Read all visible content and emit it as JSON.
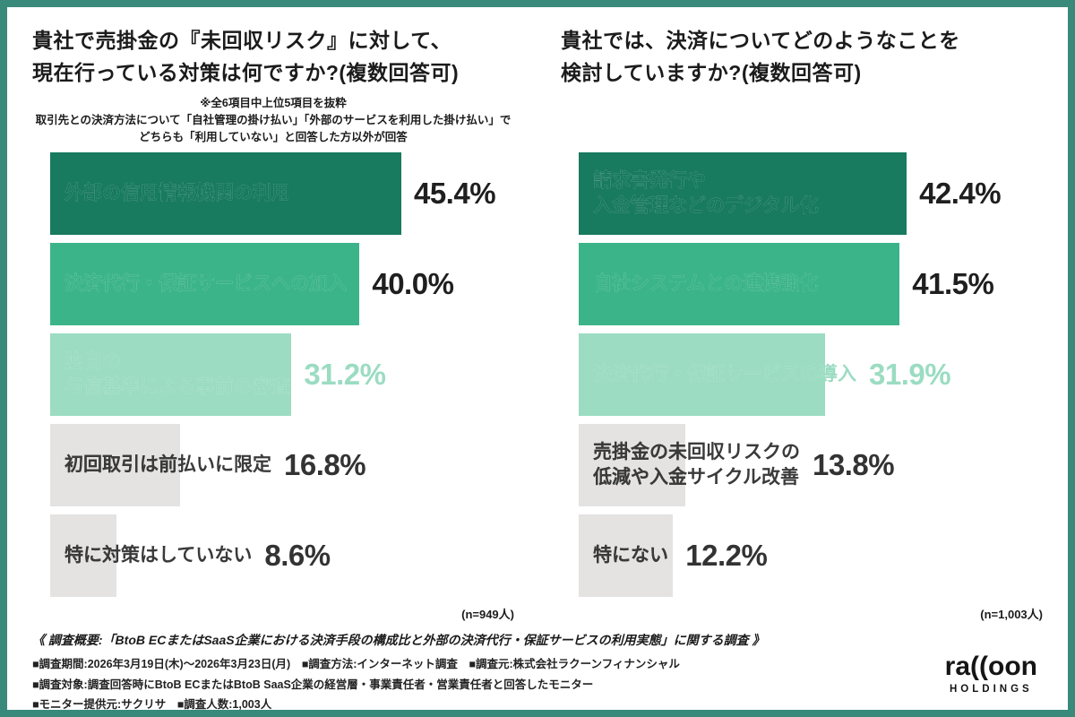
{
  "page": {
    "frame_color": "#3a8a7b",
    "background": "#ffffff"
  },
  "bar_scale_max": 60,
  "tiers": {
    "dark": {
      "bar": "#187a5f",
      "text_in": "#ffffff",
      "text_out": "#187a5f",
      "value": "#1f1f1f"
    },
    "mid": {
      "bar": "#3cb489",
      "text_in": "#ffffff",
      "text_out": "#3cb489",
      "value": "#1f1f1f"
    },
    "light": {
      "bar": "#9bdcc2",
      "text_in": "#ffffff",
      "text_out": "#9bdcc2",
      "value": "#9bdcc2"
    },
    "gray": {
      "bar": "#e4e3e2",
      "text_in": "#3a3a3a",
      "text_out": "#3a3a3a",
      "value": "#333333"
    }
  },
  "chart_data": [
    {
      "type": "bar",
      "orientation": "horizontal",
      "xlim": [
        0,
        60
      ],
      "title": "貴社で売掛金の『未回収リスク』に対して、\n現在行っている対策は何ですか?(複数回答可)",
      "note_top": "※全6項目中上位5項目を抜粋",
      "note_sub": "取引先との決済方法について「自社管理の掛け払い」「外部のサービスを利用した掛け払い」でどちらも「利用していない」と回答した方以外が回答",
      "sample": "(n=949人)",
      "items": [
        {
          "label": "外部の信用情報機関の利用",
          "value": 45.4,
          "pct": "45.4%",
          "tier": "dark"
        },
        {
          "label": "決済代行・保証サービスへの加入",
          "value": 40.0,
          "pct": "40.0%",
          "tier": "mid"
        },
        {
          "label": "独自の\n与信基準による事前の審査",
          "value": 31.2,
          "pct": "31.2%",
          "tier": "light"
        },
        {
          "label": "初回取引は前払いに限定",
          "value": 16.8,
          "pct": "16.8%",
          "tier": "gray"
        },
        {
          "label": "特に対策はしていない",
          "value": 8.6,
          "pct": "8.6%",
          "tier": "gray"
        }
      ]
    },
    {
      "type": "bar",
      "orientation": "horizontal",
      "xlim": [
        0,
        60
      ],
      "title": "貴社では、決済についてどのようなことを\n検討していますか?(複数回答可)",
      "sample": "(n=1,003人)",
      "items": [
        {
          "label": "請求書発行や\n入金管理などのデジタル化",
          "value": 42.4,
          "pct": "42.4%",
          "tier": "dark"
        },
        {
          "label": "自社システムとの連携強化",
          "value": 41.5,
          "pct": "41.5%",
          "tier": "mid"
        },
        {
          "label": "決済代行・保証サービスの導入",
          "value": 31.9,
          "pct": "31.9%",
          "tier": "light"
        },
        {
          "label": "売掛金の未回収リスクの\n低減や入金サイクル改善",
          "value": 13.8,
          "pct": "13.8%",
          "tier": "gray"
        },
        {
          "label": "特にない",
          "value": 12.2,
          "pct": "12.2%",
          "tier": "gray"
        }
      ]
    }
  ],
  "footer": {
    "headline": "《 調査概要:「BtoB ECまたはSaaS企業における決済手段の構成比と外部の決済代行・保証サービスの利用実態」に関する調査 》",
    "lines": [
      "■調査期間:2026年3月19日(木)〜2026年3月23日(月)　■調査方法:インターネット調査　■調査元:株式会社ラクーンフィナンシャル",
      "■調査対象:調査回答時にBtoB ECまたはBtoB SaaS企業の経営層・事業責任者・営業責任者と回答したモニター",
      "■モニター提供元:サクリサ　■調査人数:1,003人"
    ]
  },
  "logo": {
    "wordmark": "ra((oon",
    "subtext": "HOLDINGS"
  }
}
